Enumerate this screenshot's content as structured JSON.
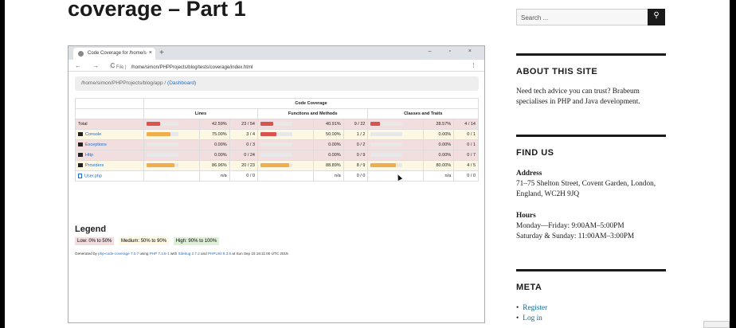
{
  "post": {
    "title": "coverage – Part 1"
  },
  "browser": {
    "tab_title": "Code Coverage for /home/s",
    "tab_close": "×",
    "new_tab": "+",
    "window_controls": "– ▫ ×",
    "nav": "← → C",
    "url_prefix": "ⓘ File |",
    "url": "/home/simon/PHPProjects/blog/tests/coverage/index.html",
    "ext": "⋮"
  },
  "coverage": {
    "breadcrumb_path": "/home/simon/PHPProjects/blog/app",
    "breadcrumb_sep": "/",
    "breadcrumb_link": "(Dashboard)",
    "header": "Code Coverage",
    "col_lines": "Lines",
    "col_functions": "Functions and Methods",
    "col_classes": "Classes and Traits",
    "colors": {
      "danger": "#d9534f",
      "warning": "#f0ad4e",
      "empty": "#e8e8e8"
    },
    "rows": [
      {
        "name": "Total",
        "icon": "none",
        "row": "danger",
        "lines_pct": "42.59%",
        "lines_frac": "23 / 54",
        "lines_fill": 0.43,
        "lines_color": "danger",
        "fn_pct": "40.91%",
        "fn_frac": "9 / 22",
        "fn_fill": 0.41,
        "fn_color": "danger",
        "cl_pct": "28.57%",
        "cl_frac": "4 / 14",
        "cl_fill": 0.29,
        "cl_color": "danger"
      },
      {
        "name": "Console",
        "icon": "folder",
        "row": "warning",
        "lines_pct": "75.00%",
        "lines_frac": "3 / 4",
        "lines_fill": 0.75,
        "lines_color": "warning",
        "fn_pct": "50.00%",
        "fn_frac": "1 / 2",
        "fn_fill": 0.5,
        "fn_color": "danger",
        "cl_pct": "0.00%",
        "cl_frac": "0 / 1",
        "cl_fill": 0,
        "cl_color": "danger"
      },
      {
        "name": "Exceptions",
        "icon": "folder",
        "row": "danger",
        "lines_pct": "0.00%",
        "lines_frac": "0 / 3",
        "lines_fill": 0,
        "lines_color": "danger",
        "fn_pct": "0.00%",
        "fn_frac": "0 / 2",
        "fn_fill": 0,
        "fn_color": "danger",
        "cl_pct": "0.00%",
        "cl_frac": "0 / 1",
        "cl_fill": 0,
        "cl_color": "danger"
      },
      {
        "name": "Http",
        "icon": "folder",
        "row": "danger",
        "lines_pct": "0.00%",
        "lines_frac": "0 / 24",
        "lines_fill": 0,
        "lines_color": "danger",
        "fn_pct": "0.00%",
        "fn_frac": "0 / 9",
        "fn_fill": 0,
        "fn_color": "danger",
        "cl_pct": "0.00%",
        "cl_frac": "0 / 7",
        "cl_fill": 0,
        "cl_color": "danger"
      },
      {
        "name": "Providers",
        "icon": "folder",
        "row": "warning",
        "lines_pct": "86.96%",
        "lines_frac": "20 / 23",
        "lines_fill": 0.87,
        "lines_color": "warning",
        "fn_pct": "88.89%",
        "fn_frac": "8 / 9",
        "fn_fill": 0.89,
        "fn_color": "warning",
        "cl_pct": "80.00%",
        "cl_frac": "4 / 5",
        "cl_fill": 0.8,
        "cl_color": "warning"
      },
      {
        "name": "User.php",
        "icon": "file",
        "row": "plain",
        "lines_pct": "n/a",
        "lines_frac": "0 / 0",
        "lines_fill": 0,
        "lines_color": "none",
        "fn_pct": "n/a",
        "fn_frac": "0 / 0",
        "fn_fill": 0,
        "fn_color": "none",
        "cl_pct": "n/a",
        "cl_frac": "0 / 0",
        "cl_fill": 0,
        "cl_color": "none"
      }
    ],
    "legend_title": "Legend",
    "legend_low": "Low: 0% to 50%",
    "legend_medium": "Medium: 50% to 90%",
    "legend_high": "High: 90% to 100%",
    "gen_1": "Generated by ",
    "gen_tool": "php-code-coverage 7.0.7",
    "gen_2": " using ",
    "gen_php": "PHP 7.3.8-1",
    "gen_3": " with ",
    "gen_xdebug": "Xdebug 2.7.2",
    "gen_4": " and ",
    "gen_phpunit": "PHPUnit 8.3.5",
    "gen_5": " at Sun Sep 15 16:11:00 UTC 2019."
  },
  "sidebar": {
    "search_placeholder": "Search ...",
    "search_button": "⚲",
    "about_title": "ABOUT THIS SITE",
    "about_text": "Need tech advice you can trust?  Brabeum specialises in PHP and Java development.",
    "find_title": "FIND US",
    "address_label": "Address",
    "address_text": "71–75 Shelton Street, Covent Garden, London, England, WC2H 9JQ",
    "hours_label": "Hours",
    "hours_1": "Monday—Friday: 9:00AM–5:00PM",
    "hours_2": "Saturday & Sunday: 11:00AM–3:00PM",
    "meta_title": "META",
    "meta_register": "Register",
    "meta_login": "Log in"
  }
}
